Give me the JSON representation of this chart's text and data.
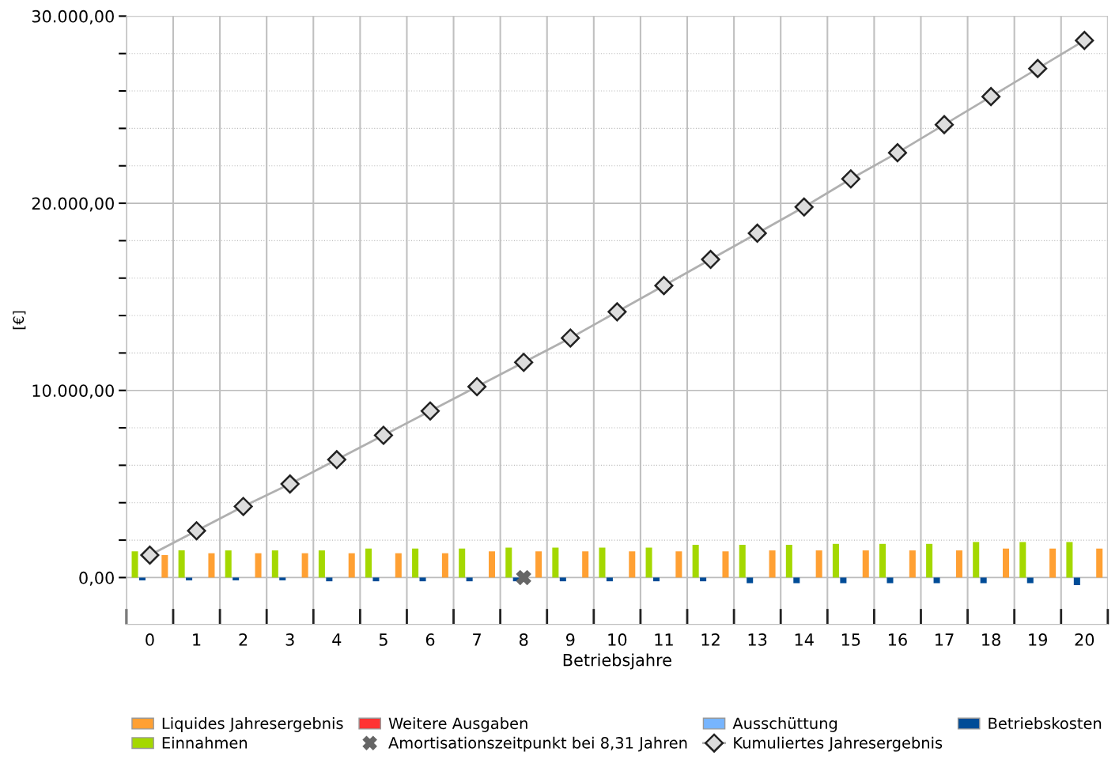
{
  "chart_data": {
    "type": "bar",
    "xlabel": "Betriebsjahre",
    "ylabel": "[€]",
    "categories": [
      "0",
      "1",
      "2",
      "3",
      "4",
      "5",
      "6",
      "7",
      "8",
      "9",
      "10",
      "11",
      "12",
      "13",
      "14",
      "15",
      "16",
      "17",
      "18",
      "19",
      "20"
    ],
    "ylim": [
      -2500,
      30000
    ],
    "yticks": [
      {
        "value": 0,
        "label": "0,00"
      },
      {
        "value": 2000,
        "label": null
      },
      {
        "value": 4000,
        "label": null
      },
      {
        "value": 6000,
        "label": null
      },
      {
        "value": 8000,
        "label": null
      },
      {
        "value": 10000,
        "label": "10.000,00"
      },
      {
        "value": 12000,
        "label": null
      },
      {
        "value": 14000,
        "label": null
      },
      {
        "value": 16000,
        "label": null
      },
      {
        "value": 18000,
        "label": null
      },
      {
        "value": 20000,
        "label": "20.000,00"
      },
      {
        "value": 22000,
        "label": null
      },
      {
        "value": 24000,
        "label": null
      },
      {
        "value": 26000,
        "label": null
      },
      {
        "value": 28000,
        "label": null
      },
      {
        "value": 30000,
        "label": "30.000,00"
      }
    ],
    "grid": true,
    "legend": "bottom",
    "series": [
      {
        "name": "Einnahmen",
        "color": "#a4d800",
        "values": [
          1400,
          1450,
          1450,
          1450,
          1450,
          1550,
          1550,
          1550,
          1600,
          1600,
          1600,
          1600,
          1750,
          1750,
          1750,
          1800,
          1800,
          1800,
          1900,
          1900,
          1900
        ]
      },
      {
        "name": "Betriebskosten",
        "color": "#004c97",
        "values": [
          -150,
          -150,
          -150,
          -150,
          -200,
          -200,
          -200,
          -200,
          -200,
          -200,
          -200,
          -200,
          -200,
          -300,
          -300,
          -300,
          -300,
          -300,
          -300,
          -300,
          -400
        ]
      },
      {
        "name": "Weitere Ausgaben",
        "color": "#ff3333",
        "values": [
          null,
          null,
          null,
          null,
          null,
          null,
          null,
          null,
          null,
          null,
          null,
          null,
          null,
          null,
          null,
          null,
          null,
          null,
          null,
          null,
          null
        ]
      },
      {
        "name": "Ausschüttung",
        "color": "#77b5fe",
        "values": [
          null,
          null,
          null,
          null,
          null,
          null,
          null,
          null,
          null,
          null,
          null,
          null,
          null,
          null,
          null,
          null,
          null,
          null,
          null,
          null,
          null
        ]
      },
      {
        "name": "Liquides Jahresergebnis",
        "color": "#ffa033",
        "values": [
          1200,
          1300,
          1300,
          1300,
          1300,
          1300,
          1300,
          1400,
          1400,
          1400,
          1400,
          1400,
          1400,
          1450,
          1450,
          1450,
          1450,
          1450,
          1550,
          1550,
          1550
        ]
      },
      {
        "name": "Amortisationszeitpunkt bei 8,31 Jahren",
        "type": "scatter",
        "marker": "cross",
        "color": "#666666",
        "values": [
          null,
          null,
          null,
          null,
          null,
          null,
          null,
          null,
          0,
          null,
          null,
          null,
          null,
          null,
          null,
          null,
          null,
          null,
          null,
          null,
          null
        ]
      },
      {
        "name": "Kumuliertes Jahresergebnis",
        "type": "line",
        "marker": "diamond",
        "color": "#b0b0b0",
        "values": [
          1200,
          2500,
          3800,
          5000,
          6300,
          7600,
          8900,
          10200,
          11500,
          12800,
          14200,
          15600,
          17000,
          18400,
          19800,
          21300,
          22700,
          24200,
          25700,
          27200,
          28700
        ]
      }
    ]
  }
}
